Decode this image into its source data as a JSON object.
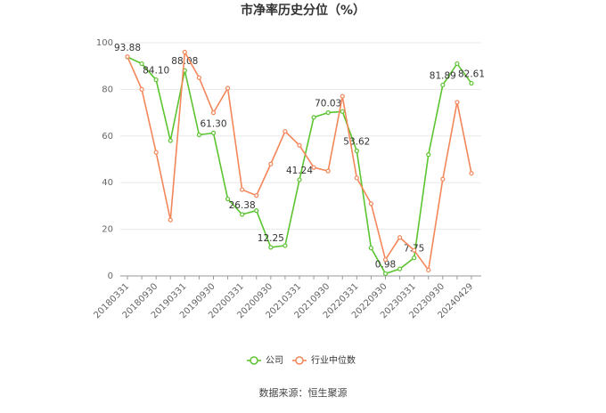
{
  "chart_data": {
    "type": "line",
    "title": "市净率历史分位（%）",
    "categories": [
      "20180331",
      null,
      "20180930",
      null,
      "20190331",
      null,
      "20190930",
      null,
      "20200331",
      null,
      "20200930",
      null,
      "20210331",
      null,
      "20210930",
      null,
      "20220331",
      null,
      "20220930",
      null,
      "20230331",
      null,
      "20230930",
      null,
      "20240429"
    ],
    "series": [
      {
        "name": "公司",
        "color": "#5cc430",
        "values": [
          93.88,
          91,
          84.1,
          58,
          88.08,
          60.5,
          61.3,
          33,
          26.38,
          28,
          12.25,
          13,
          41.24,
          68,
          70.03,
          70.5,
          53.62,
          12,
          0.98,
          3,
          7.75,
          52,
          81.89,
          91,
          82.61
        ],
        "value_labels": [
          "93.88",
          null,
          "84.10",
          null,
          "88.08",
          null,
          "61.30",
          null,
          "26.38",
          null,
          "12.25",
          null,
          "41.24",
          null,
          "70.03",
          null,
          "53.62",
          null,
          "0.98",
          null,
          "7.75",
          null,
          "81.89",
          null,
          "82.61"
        ]
      },
      {
        "name": "行业中位数",
        "color": "#f4875a",
        "values": [
          94,
          80,
          53,
          24,
          96,
          85,
          70,
          80.5,
          37,
          34.5,
          48,
          62,
          56,
          46.5,
          45,
          77,
          42,
          31,
          7,
          16.5,
          11,
          2.5,
          41.5,
          74.5,
          44
        ]
      }
    ],
    "ylim": [
      0,
      100
    ],
    "yticks": [
      0,
      20,
      40,
      60,
      80,
      100
    ],
    "grid": true,
    "source": "数据来源：恒生聚源"
  }
}
